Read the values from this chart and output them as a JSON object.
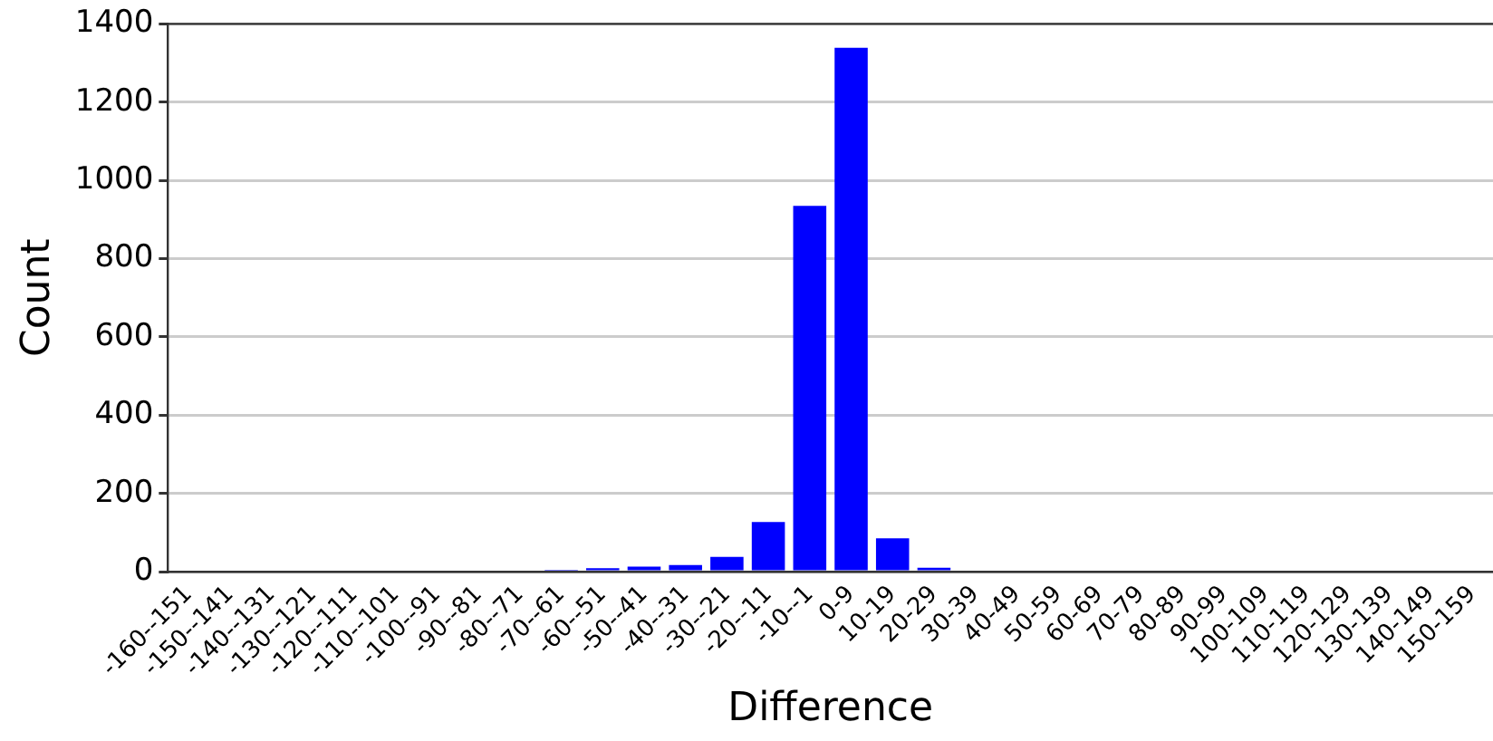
{
  "chart_data": {
    "type": "bar",
    "xlabel": "Difference",
    "ylabel": "Count",
    "categories": [
      "-160--151",
      "-150--141",
      "-140--131",
      "-130--121",
      "-120--111",
      "-110--101",
      "-100--91",
      "-90--81",
      "-80--71",
      "-70--61",
      "-60--51",
      "-50--41",
      "-40--31",
      "-30--21",
      "-20--11",
      "-10--1",
      "0-9",
      "10-19",
      "20-29",
      "30-39",
      "40-49",
      "50-59",
      "60-69",
      "70-79",
      "80-89",
      "90-99",
      "100-109",
      "110-119",
      "120-129",
      "130-139",
      "140-149",
      "150-159"
    ],
    "values": [
      0,
      0,
      0,
      0,
      0,
      0,
      0,
      0,
      0,
      5,
      9,
      13,
      17,
      38,
      127,
      935,
      1339,
      85,
      10,
      0,
      0,
      0,
      0,
      0,
      0,
      0,
      0,
      0,
      0,
      0,
      0,
      0
    ],
    "color": "#0000ff",
    "ylim": [
      0,
      1400
    ],
    "yticks": [
      0,
      200,
      400,
      600,
      800,
      1000,
      1200,
      1400
    ],
    "grid": "y",
    "legend": false
  }
}
